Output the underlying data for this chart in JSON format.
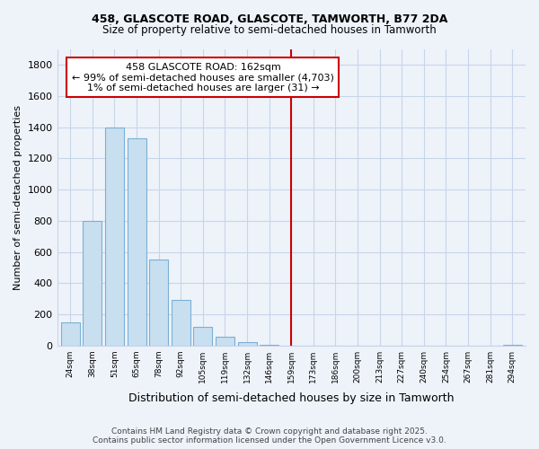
{
  "title": "458, GLASCOTE ROAD, GLASCOTE, TAMWORTH, B77 2DA",
  "subtitle": "Size of property relative to semi-detached houses in Tamworth",
  "xlabel": "Distribution of semi-detached houses by size in Tamworth",
  "ylabel": "Number of semi-detached properties",
  "bin_labels": [
    "24sqm",
    "38sqm",
    "51sqm",
    "65sqm",
    "78sqm",
    "92sqm",
    "105sqm",
    "119sqm",
    "132sqm",
    "146sqm",
    "159sqm",
    "173sqm",
    "186sqm",
    "200sqm",
    "213sqm",
    "227sqm",
    "240sqm",
    "254sqm",
    "267sqm",
    "281sqm",
    "294sqm"
  ],
  "bar_heights": [
    150,
    800,
    1400,
    1330,
    550,
    290,
    120,
    55,
    20,
    5,
    0,
    0,
    0,
    0,
    0,
    0,
    0,
    0,
    0,
    0,
    5
  ],
  "bar_color": "#c8dff0",
  "bar_edge_color": "#7ab0d4",
  "vline_color": "#cc0000",
  "annotation_title": "458 GLASCOTE ROAD: 162sqm",
  "annotation_line1": "← 99% of semi-detached houses are smaller (4,703)",
  "annotation_line2": "1% of semi-detached houses are larger (31) →",
  "annotation_box_color": "white",
  "annotation_box_edge": "#cc0000",
  "ylim": [
    0,
    1900
  ],
  "yticks": [
    0,
    200,
    400,
    600,
    800,
    1000,
    1200,
    1400,
    1600,
    1800
  ],
  "footer_line1": "Contains HM Land Registry data © Crown copyright and database right 2025.",
  "footer_line2": "Contains public sector information licensed under the Open Government Licence v3.0.",
  "bg_color": "#eef3fa",
  "grid_color": "#c8d4e8"
}
